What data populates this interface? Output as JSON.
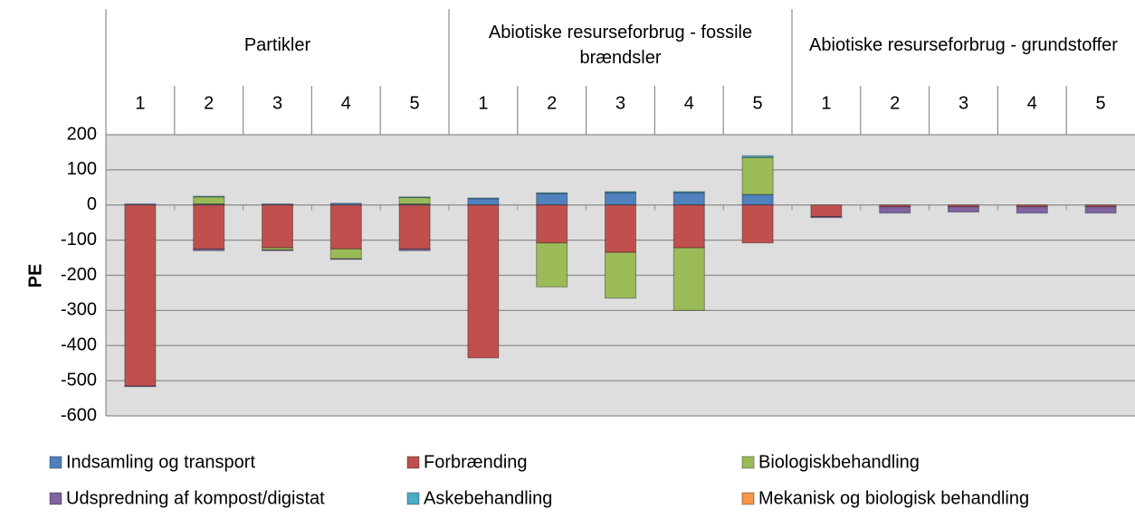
{
  "chart_data": {
    "type": "bar",
    "stacked": true,
    "y_label": "PE",
    "category_groups": [
      {
        "label": "Partikler",
        "categories": [
          "1",
          "2",
          "3",
          "4",
          "5"
        ]
      },
      {
        "label": "Abiotiske resurseforbrug - fossile brændsler",
        "categories": [
          "1",
          "2",
          "3",
          "4",
          "5"
        ]
      },
      {
        "label": "Abiotiske resurseforbrug - grundstoffer",
        "categories": [
          "1",
          "2",
          "3",
          "4",
          "5"
        ]
      }
    ],
    "series": [
      {
        "name": "Indsamling og transport",
        "color": "#4f81bd",
        "values": [
          3,
          3,
          3,
          5,
          3,
          18,
          32,
          35,
          35,
          30,
          0,
          0,
          0,
          0,
          0
        ]
      },
      {
        "name": "Forbrænding",
        "color": "#c0504d",
        "values": [
          -515,
          -125,
          -122,
          -125,
          -125,
          -435,
          -108,
          -135,
          -122,
          -108,
          -33,
          -5,
          -5,
          -5,
          -5
        ]
      },
      {
        "name": "Biologiskbehandling",
        "color": "#9bbb59",
        "values": [
          0,
          20,
          -6,
          -28,
          18,
          0,
          -125,
          -130,
          -178,
          105,
          0,
          0,
          0,
          0,
          0
        ]
      },
      {
        "name": "Udspredning af kompost/digistat",
        "color": "#8064a2",
        "values": [
          -2,
          -5,
          -2,
          -2,
          -5,
          0,
          0,
          0,
          0,
          0,
          -3,
          -18,
          -15,
          -18,
          -18
        ]
      },
      {
        "name": "Askebehandling",
        "color": "#4bacc6",
        "values": [
          0,
          2,
          0,
          0,
          2,
          2,
          3,
          3,
          3,
          5,
          0,
          0,
          0,
          0,
          0
        ]
      },
      {
        "name": "Mekanisk og biologisk behandling",
        "color": "#f79646",
        "values": [
          0,
          0,
          0,
          0,
          0,
          0,
          0,
          0,
          0,
          0,
          0,
          0,
          0,
          0,
          0
        ]
      }
    ],
    "ylim": [
      -600,
      200
    ],
    "yticks": [
      -600,
      -500,
      -400,
      -300,
      -200,
      -100,
      0,
      100,
      200
    ],
    "grid": true
  }
}
